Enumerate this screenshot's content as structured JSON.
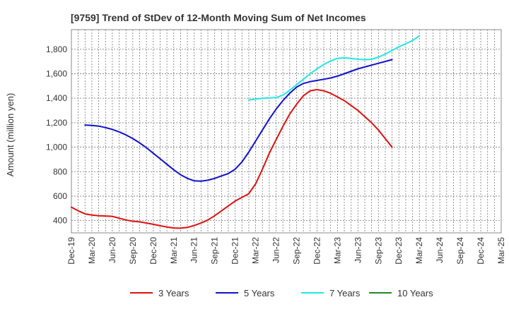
{
  "chart_data": {
    "type": "line",
    "title": "[9759]  Trend of StDev of 12-Month Moving Sum of Net Incomes",
    "xlabel": "",
    "ylabel": "Amount (million yen)",
    "ylim": [
      300,
      1960
    ],
    "yticks": [
      400,
      600,
      800,
      1000,
      1200,
      1400,
      1600,
      1800
    ],
    "ytick_labels": [
      "400",
      "600",
      "800",
      "1,000",
      "1,200",
      "1,400",
      "1,600",
      "1,800"
    ],
    "xticks": [
      "Dec-19",
      "Mar-20",
      "Jun-20",
      "Sep-20",
      "Dec-20",
      "Mar-21",
      "Jun-21",
      "Sep-21",
      "Dec-21",
      "Mar-22",
      "Jun-22",
      "Sep-22",
      "Dec-22",
      "Mar-23",
      "Jun-23",
      "Sep-23",
      "Dec-23",
      "Mar-24",
      "Jun-24",
      "Sep-24",
      "Dec-24",
      "Mar-25"
    ],
    "grid": true,
    "legend_position": "bottom",
    "series": [
      {
        "name": "3 Years",
        "color": "#dd1111",
        "start_index": 0,
        "values": [
          510,
          480,
          455,
          445,
          440,
          438,
          435,
          420,
          405,
          395,
          390,
          380,
          370,
          358,
          348,
          340,
          338,
          345,
          360,
          380,
          405,
          440,
          480,
          520,
          560,
          590,
          620,
          700,
          820,
          950,
          1060,
          1170,
          1270,
          1350,
          1420,
          1460,
          1470,
          1460,
          1440,
          1410,
          1380,
          1340,
          1300,
          1250,
          1200,
          1140,
          1070,
          1000
        ]
      },
      {
        "name": "5 Years",
        "color": "#1111cc",
        "start_index": 2,
        "values": [
          1180,
          1178,
          1172,
          1160,
          1145,
          1125,
          1100,
          1070,
          1035,
          995,
          950,
          905,
          860,
          815,
          775,
          745,
          725,
          722,
          730,
          745,
          765,
          785,
          820,
          880,
          960,
          1050,
          1140,
          1230,
          1310,
          1380,
          1440,
          1490,
          1520,
          1535,
          1545,
          1555,
          1565,
          1580,
          1600,
          1620,
          1640,
          1655,
          1670,
          1685,
          1700,
          1715
        ]
      },
      {
        "name": "7 Years",
        "color": "#22e6e6",
        "start_index": 26,
        "values": [
          1385,
          1393,
          1400,
          1402,
          1405,
          1425,
          1465,
          1510,
          1555,
          1600,
          1640,
          1675,
          1705,
          1725,
          1730,
          1725,
          1718,
          1715,
          1718,
          1735,
          1760,
          1790,
          1820,
          1845,
          1870,
          1910
        ]
      },
      {
        "name": "10 Years",
        "color": "#228822",
        "start_index": 0,
        "values": []
      }
    ]
  }
}
